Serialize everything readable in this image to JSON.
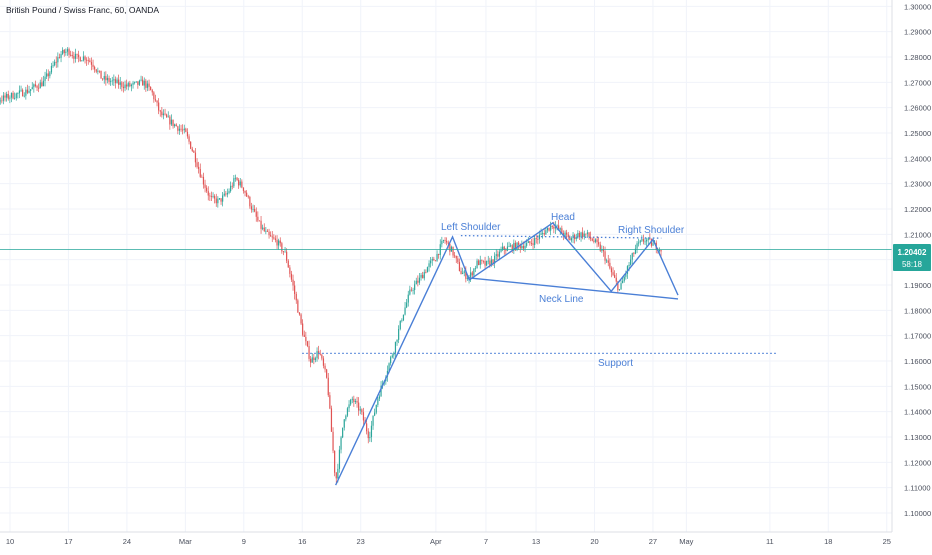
{
  "header": {
    "title": "British Pound / Swiss Franc, 60, OANDA"
  },
  "price_tag": {
    "price": "1.20402",
    "countdown": "58:18"
  },
  "colors": {
    "up": "#2ca59a",
    "down": "#e05252",
    "pattern": "#4a7fd6",
    "price_line": "#26a69a",
    "grid": "#f0f3fa",
    "axis_text": "#4a4f5c"
  },
  "annotations": {
    "left_shoulder": "Left Shoulder",
    "head": "Head",
    "right_shoulder": "Right Shoulder",
    "neck_line": "Neck Line",
    "support": "Support"
  },
  "chart_data": {
    "type": "candlestick",
    "title": "British Pound / Swiss Franc, 60, OANDA",
    "x_axis": {
      "tick_labels": [
        "10",
        "17",
        "24",
        "Mar",
        "9",
        "16",
        "23",
        "Apr",
        "7",
        "13",
        "20",
        "27",
        "May",
        "11",
        "18",
        "25"
      ]
    },
    "y_axis": {
      "ylim": [
        1.0925,
        1.3025
      ],
      "ticks": [
        1.1,
        1.11,
        1.12,
        1.13,
        1.14,
        1.15,
        1.16,
        1.17,
        1.18,
        1.19,
        1.2,
        1.21,
        1.22,
        1.23,
        1.24,
        1.25,
        1.26,
        1.27,
        1.28,
        1.29,
        1.3
      ],
      "tick_labels": [
        "1.10000",
        "1.11000",
        "1.12000",
        "1.13000",
        "1.14000",
        "1.15000",
        "1.16000",
        "1.17000",
        "1.18000",
        "1.19000",
        "1.20000",
        "1.21000",
        "1.22000",
        "1.23000",
        "1.24000",
        "1.25000",
        "1.26000",
        "1.27000",
        "1.28000",
        "1.29000",
        "1.30000"
      ]
    },
    "current_price": 1.20402,
    "price_path": [
      [
        "Feb 5",
        1.2625
      ],
      [
        "Feb 7",
        1.2615
      ],
      [
        "Feb 10",
        1.2645
      ],
      [
        "Feb 12",
        1.2665
      ],
      [
        "Feb 14",
        1.27
      ],
      [
        "Feb 16",
        1.281
      ],
      [
        "Feb 17",
        1.2825
      ],
      [
        "Feb 18",
        1.2795
      ],
      [
        "Feb 19",
        1.28
      ],
      [
        "Feb 20",
        1.277
      ],
      [
        "Feb 21",
        1.2715
      ],
      [
        "Feb 23",
        1.2695
      ],
      [
        "Feb 24",
        1.2685
      ],
      [
        "Feb 25",
        1.269
      ],
      [
        "Feb 26",
        1.27
      ],
      [
        "Feb 27",
        1.266
      ],
      [
        "Feb 28",
        1.2575
      ],
      [
        "Mar 2",
        1.25
      ],
      [
        "Mar 3",
        1.242
      ],
      [
        "Mar 4",
        1.232
      ],
      [
        "Mar 5",
        1.224
      ],
      [
        "Mar 6",
        1.223
      ],
      [
        "Mar 7",
        1.226
      ],
      [
        "Mar 8",
        1.232
      ],
      [
        "Mar 9",
        1.228
      ],
      [
        "Mar 10",
        1.22
      ],
      [
        "Mar 11",
        1.213
      ],
      [
        "Mar 12",
        1.209
      ],
      [
        "Mar 13",
        1.207
      ],
      [
        "Mar 14",
        1.202
      ],
      [
        "Mar 15",
        1.188
      ],
      [
        "Mar 16",
        1.172
      ],
      [
        "Mar 17",
        1.16
      ],
      [
        "Mar 18",
        1.164
      ],
      [
        "Mar 19",
        1.152
      ],
      [
        "Mar 20",
        1.112
      ],
      [
        "Mar 21",
        1.138
      ],
      [
        "Mar 22",
        1.145
      ],
      [
        "Mar 23",
        1.14
      ],
      [
        "Mar 24",
        1.13
      ],
      [
        "Mar 25",
        1.145
      ],
      [
        "Mar 26",
        1.155
      ],
      [
        "Mar 27",
        1.165
      ],
      [
        "Mar 28",
        1.178
      ],
      [
        "Mar 29",
        1.188
      ],
      [
        "Mar 30",
        1.192
      ],
      [
        "Mar 31",
        1.197
      ],
      [
        "Apr 1",
        1.201
      ],
      [
        "Apr 2",
        1.208
      ],
      [
        "Apr 3",
        1.203
      ],
      [
        "Apr 4",
        1.195
      ],
      [
        "Apr 5",
        1.193
      ],
      [
        "Apr 6",
        1.199
      ],
      [
        "Apr 7",
        1.198
      ],
      [
        "Apr 8",
        1.2
      ],
      [
        "Apr 9",
        1.204
      ],
      [
        "Apr 10",
        1.205
      ],
      [
        "Apr 12",
        1.206
      ],
      [
        "Apr 13",
        1.208
      ],
      [
        "Apr 14",
        1.211
      ],
      [
        "Apr 15",
        1.214
      ],
      [
        "Apr 16",
        1.211
      ],
      [
        "Apr 17",
        1.208
      ],
      [
        "Apr 18",
        1.21
      ],
      [
        "Apr 19",
        1.21
      ],
      [
        "Apr 20",
        1.207
      ],
      [
        "Apr 21",
        1.203
      ],
      [
        "Apr 22",
        1.195
      ],
      [
        "Apr 23",
        1.188
      ],
      [
        "Apr 24",
        1.197
      ],
      [
        "Apr 25",
        1.205
      ],
      [
        "Apr 26",
        1.208
      ],
      [
        "Apr 27",
        1.206
      ],
      [
        "Apr 28",
        1.204
      ]
    ],
    "drawings": {
      "shoulder_line": [
        [
          "Apr 4",
          1.2095
        ],
        [
          "Apr 28",
          1.2085
        ]
      ],
      "neck_line": [
        [
          "Apr 5",
          1.1928
        ],
        [
          "Apr 30",
          1.1845
        ]
      ],
      "support_line": [
        [
          "Mar 16",
          1.163
        ],
        [
          "May 12",
          1.163
        ]
      ],
      "pattern_path": [
        [
          "Mar 20",
          1.111
        ],
        [
          "Apr 3",
          1.209
        ],
        [
          "Apr 5",
          1.192
        ],
        [
          "Apr 13",
          1.21
        ],
        [
          "Apr 15",
          1.2145
        ],
        [
          "Apr 22",
          1.1875
        ],
        [
          "Apr 27",
          1.208
        ],
        [
          "Apr 30",
          1.186
        ]
      ]
    }
  }
}
